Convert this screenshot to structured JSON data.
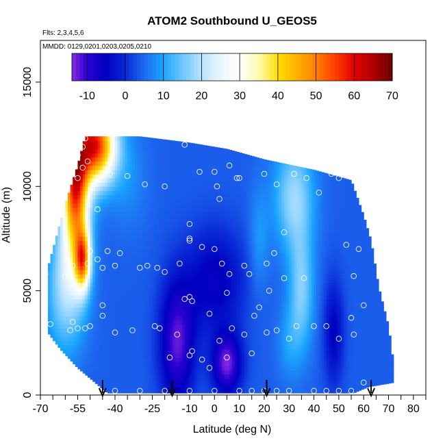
{
  "chart_data": {
    "type": "heatmap",
    "title": "ATOM2 Southbound U_GEOS5",
    "subtitle_flights": "Flts: 2,3,4,5,6",
    "subtitle_dates": "MMDD: 0129,0201,0203,0205,0210",
    "xlabel": "Latitude (deg N)",
    "ylabel": "Altitude (m)",
    "xlim": [
      -70,
      85
    ],
    "ylim": [
      0,
      17000
    ],
    "x_ticks_labeled": [
      -70,
      -55,
      -40,
      -25,
      -10,
      0,
      10,
      20,
      30,
      40,
      50,
      60,
      70,
      80
    ],
    "x_ticks_minor": [
      -65,
      -60,
      -50,
      -45,
      -35,
      -30,
      -20,
      -15,
      -5,
      5,
      15,
      25,
      35,
      45,
      55,
      65,
      75,
      85
    ],
    "y_ticks": [
      0,
      5000,
      10000,
      15000
    ],
    "colorbar": {
      "min": -14,
      "max": 70,
      "ticks": [
        -10,
        0,
        10,
        20,
        30,
        40,
        50,
        60,
        70
      ],
      "stops": [
        {
          "v": -14,
          "c": "#8a2be2"
        },
        {
          "v": -10,
          "c": "#2a00d0"
        },
        {
          "v": -5,
          "c": "#0000c0"
        },
        {
          "v": 0,
          "c": "#0a2ad8"
        },
        {
          "v": 5,
          "c": "#1e6af0"
        },
        {
          "v": 10,
          "c": "#1aa5ff"
        },
        {
          "v": 15,
          "c": "#6ec6ff"
        },
        {
          "v": 20,
          "c": "#b8e2ff"
        },
        {
          "v": 25,
          "c": "#ecf6ff"
        },
        {
          "v": 30,
          "c": "#ffffff"
        },
        {
          "v": 35,
          "c": "#fffbb0"
        },
        {
          "v": 40,
          "c": "#ffe000"
        },
        {
          "v": 45,
          "c": "#ffb000"
        },
        {
          "v": 50,
          "c": "#ff8000"
        },
        {
          "v": 55,
          "c": "#ff4000"
        },
        {
          "v": 60,
          "c": "#e00000"
        },
        {
          "v": 65,
          "c": "#b00000"
        },
        {
          "v": 70,
          "c": "#6a0000"
        }
      ]
    },
    "domain_top_altitude": [
      {
        "lat": -67,
        "alt": 6100
      },
      {
        "lat": -62,
        "alt": 8300
      },
      {
        "lat": -58,
        "alt": 9900
      },
      {
        "lat": -55,
        "alt": 11000
      },
      {
        "lat": -52,
        "alt": 12400
      },
      {
        "lat": -30,
        "alt": 12400
      },
      {
        "lat": -10,
        "alt": 12100
      },
      {
        "lat": 5,
        "alt": 11800
      },
      {
        "lat": 20,
        "alt": 11300
      },
      {
        "lat": 40,
        "alt": 10800
      },
      {
        "lat": 55,
        "alt": 10300
      },
      {
        "lat": 60,
        "alt": 8600
      },
      {
        "lat": 63,
        "alt": 7400
      },
      {
        "lat": 66,
        "alt": 5200
      },
      {
        "lat": 70,
        "alt": 3300
      },
      {
        "lat": 72,
        "alt": 1500
      }
    ],
    "domain_bottom_altitude": [
      {
        "lat": -67,
        "alt": 3000
      },
      {
        "lat": -62,
        "alt": 2200
      },
      {
        "lat": -55,
        "alt": 1300
      },
      {
        "lat": -48,
        "alt": 600
      },
      {
        "lat": -43,
        "alt": 100
      },
      {
        "lat": 56,
        "alt": 100
      },
      {
        "lat": 62,
        "alt": 400
      },
      {
        "lat": 72,
        "alt": 600
      }
    ],
    "wind_features": [
      {
        "lat": -48,
        "alt": 12000,
        "u": 58,
        "wlat": 8,
        "walt": 1800
      },
      {
        "lat": -56,
        "alt": 10500,
        "u": 45,
        "wlat": 5,
        "walt": 2500
      },
      {
        "lat": -53,
        "alt": 6500,
        "u": 40,
        "wlat": 3,
        "walt": 1400
      },
      {
        "lat": -56,
        "alt": 8000,
        "u": 25,
        "wlat": 6,
        "walt": 3000
      },
      {
        "lat": -60,
        "alt": 5000,
        "u": 17,
        "wlat": 8,
        "walt": 3000
      },
      {
        "lat": -35,
        "alt": 10500,
        "u": 8,
        "wlat": 8,
        "walt": 2500
      },
      {
        "lat": -15,
        "alt": 2500,
        "u": -12,
        "wlat": 7,
        "walt": 3000
      },
      {
        "lat": 5,
        "alt": 1500,
        "u": -13,
        "wlat": 6,
        "walt": 1500
      },
      {
        "lat": 0,
        "alt": 5500,
        "u": -6,
        "wlat": 12,
        "walt": 2500
      },
      {
        "lat": 32,
        "alt": 9500,
        "u": 18,
        "wlat": 8,
        "walt": 2600
      },
      {
        "lat": 35,
        "alt": 5000,
        "u": 16,
        "wlat": 5,
        "walt": 2800
      },
      {
        "lat": 30,
        "alt": 2500,
        "u": 9,
        "wlat": 5,
        "walt": 1800
      },
      {
        "lat": 18,
        "alt": 7500,
        "u": 9,
        "wlat": 4,
        "walt": 2500
      },
      {
        "lat": 48,
        "alt": 3000,
        "u": -5,
        "wlat": 4,
        "walt": 2500
      }
    ],
    "background_wind": 4,
    "observation_points": [
      [
        -52,
        12300
      ],
      [
        -53,
        11900
      ],
      [
        -55,
        11500
      ],
      [
        -51,
        11200
      ],
      [
        -53,
        10900
      ],
      [
        -55,
        10400
      ],
      [
        -42,
        10600
      ],
      [
        -35,
        10500
      ],
      [
        -28,
        10100
      ],
      [
        -20,
        10000
      ],
      [
        -12,
        12000
      ],
      [
        -6,
        10700
      ],
      [
        0,
        10700
      ],
      [
        1,
        10000
      ],
      [
        2,
        9400
      ],
      [
        6,
        11000
      ],
      [
        9,
        10400
      ],
      [
        10,
        10400
      ],
      [
        20,
        10600
      ],
      [
        25,
        10100
      ],
      [
        32,
        10600
      ],
      [
        37,
        10400
      ],
      [
        42,
        9700
      ],
      [
        47,
        10600
      ],
      [
        50,
        10400
      ],
      [
        -47,
        8900
      ],
      [
        -10,
        8200
      ],
      [
        -10,
        7400
      ],
      [
        -10,
        7500
      ],
      [
        -5,
        7100
      ],
      [
        0,
        7000
      ],
      [
        3,
        6300
      ],
      [
        -30,
        6100
      ],
      [
        -27,
        6200
      ],
      [
        -23,
        6100
      ],
      [
        -20,
        5900
      ],
      [
        -38,
        6800
      ],
      [
        -43,
        6900
      ],
      [
        -50,
        6900
      ],
      [
        -47,
        6500
      ],
      [
        -51,
        6300
      ],
      [
        -57,
        6200
      ],
      [
        -45,
        6100
      ],
      [
        -40,
        6200
      ],
      [
        -14,
        6300
      ],
      [
        -12,
        4600
      ],
      [
        -10,
        4700
      ],
      [
        -9,
        4500
      ],
      [
        6,
        5800
      ],
      [
        12,
        6200
      ],
      [
        14,
        5800
      ],
      [
        21,
        6300
      ],
      [
        24,
        6800
      ],
      [
        28,
        7800
      ],
      [
        36,
        5600
      ],
      [
        28,
        5600
      ],
      [
        22,
        5000
      ],
      [
        18,
        4200
      ],
      [
        5,
        4900
      ],
      [
        -45,
        4300
      ],
      [
        -45,
        3800
      ],
      [
        -57,
        3500
      ],
      [
        -58,
        3100
      ],
      [
        -55,
        3200
      ],
      [
        -52,
        3200
      ],
      [
        -50,
        3300
      ],
      [
        -40,
        3000
      ],
      [
        -33,
        3100
      ],
      [
        -24,
        3300
      ],
      [
        -22,
        3200
      ],
      [
        -66,
        3400
      ],
      [
        -18,
        1800
      ],
      [
        -10,
        1900
      ],
      [
        -9,
        2100
      ],
      [
        -5,
        1700
      ],
      [
        -2,
        1300
      ],
      [
        2,
        2600
      ],
      [
        5,
        1800
      ],
      [
        7,
        3200
      ],
      [
        12,
        2900
      ],
      [
        15,
        2000
      ],
      [
        16,
        3800
      ],
      [
        21,
        3000
      ],
      [
        25,
        3100
      ],
      [
        30,
        2700
      ],
      [
        33,
        3300
      ],
      [
        40,
        3300
      ],
      [
        45,
        3300
      ],
      [
        50,
        2700
      ],
      [
        55,
        3700
      ],
      [
        56,
        2900
      ],
      [
        56,
        5700
      ],
      [
        58,
        7000
      ],
      [
        60,
        4300
      ],
      [
        53,
        7200
      ],
      [
        -48,
        200
      ],
      [
        -40,
        200
      ],
      [
        -30,
        200
      ],
      [
        -20,
        200
      ],
      [
        -10,
        200
      ],
      [
        0,
        200
      ],
      [
        10,
        200
      ],
      [
        15,
        200
      ],
      [
        20,
        200
      ],
      [
        25,
        200
      ],
      [
        30,
        200
      ],
      [
        40,
        200
      ],
      [
        45,
        200
      ],
      [
        50,
        200
      ],
      [
        55,
        200
      ],
      [
        60,
        600
      ],
      [
        -68,
        5800
      ],
      [
        -60,
        5700
      ],
      [
        -15,
        2900
      ],
      [
        -2,
        3900
      ]
    ],
    "arrows_latitudes": [
      -45,
      -17,
      21,
      63
    ]
  }
}
